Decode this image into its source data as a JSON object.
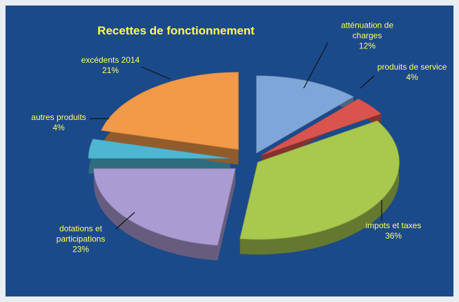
{
  "chart_data": {
    "type": "pie",
    "title": "Recettes de fonctionnement",
    "categories": [
      "atténuation de charges",
      "produits de service",
      "impots et taxes",
      "dotations et participations",
      "autres produits",
      "excédents 2014"
    ],
    "values": [
      12,
      4,
      36,
      23,
      4,
      21
    ],
    "value_labels": [
      "12%",
      "4%",
      "36%",
      "23%",
      "4%",
      "21%"
    ],
    "colors": [
      "#7ea6d8",
      "#d9544f",
      "#a8c84e",
      "#aa9bd2",
      "#4fb6d2",
      "#f29a48"
    ]
  }
}
